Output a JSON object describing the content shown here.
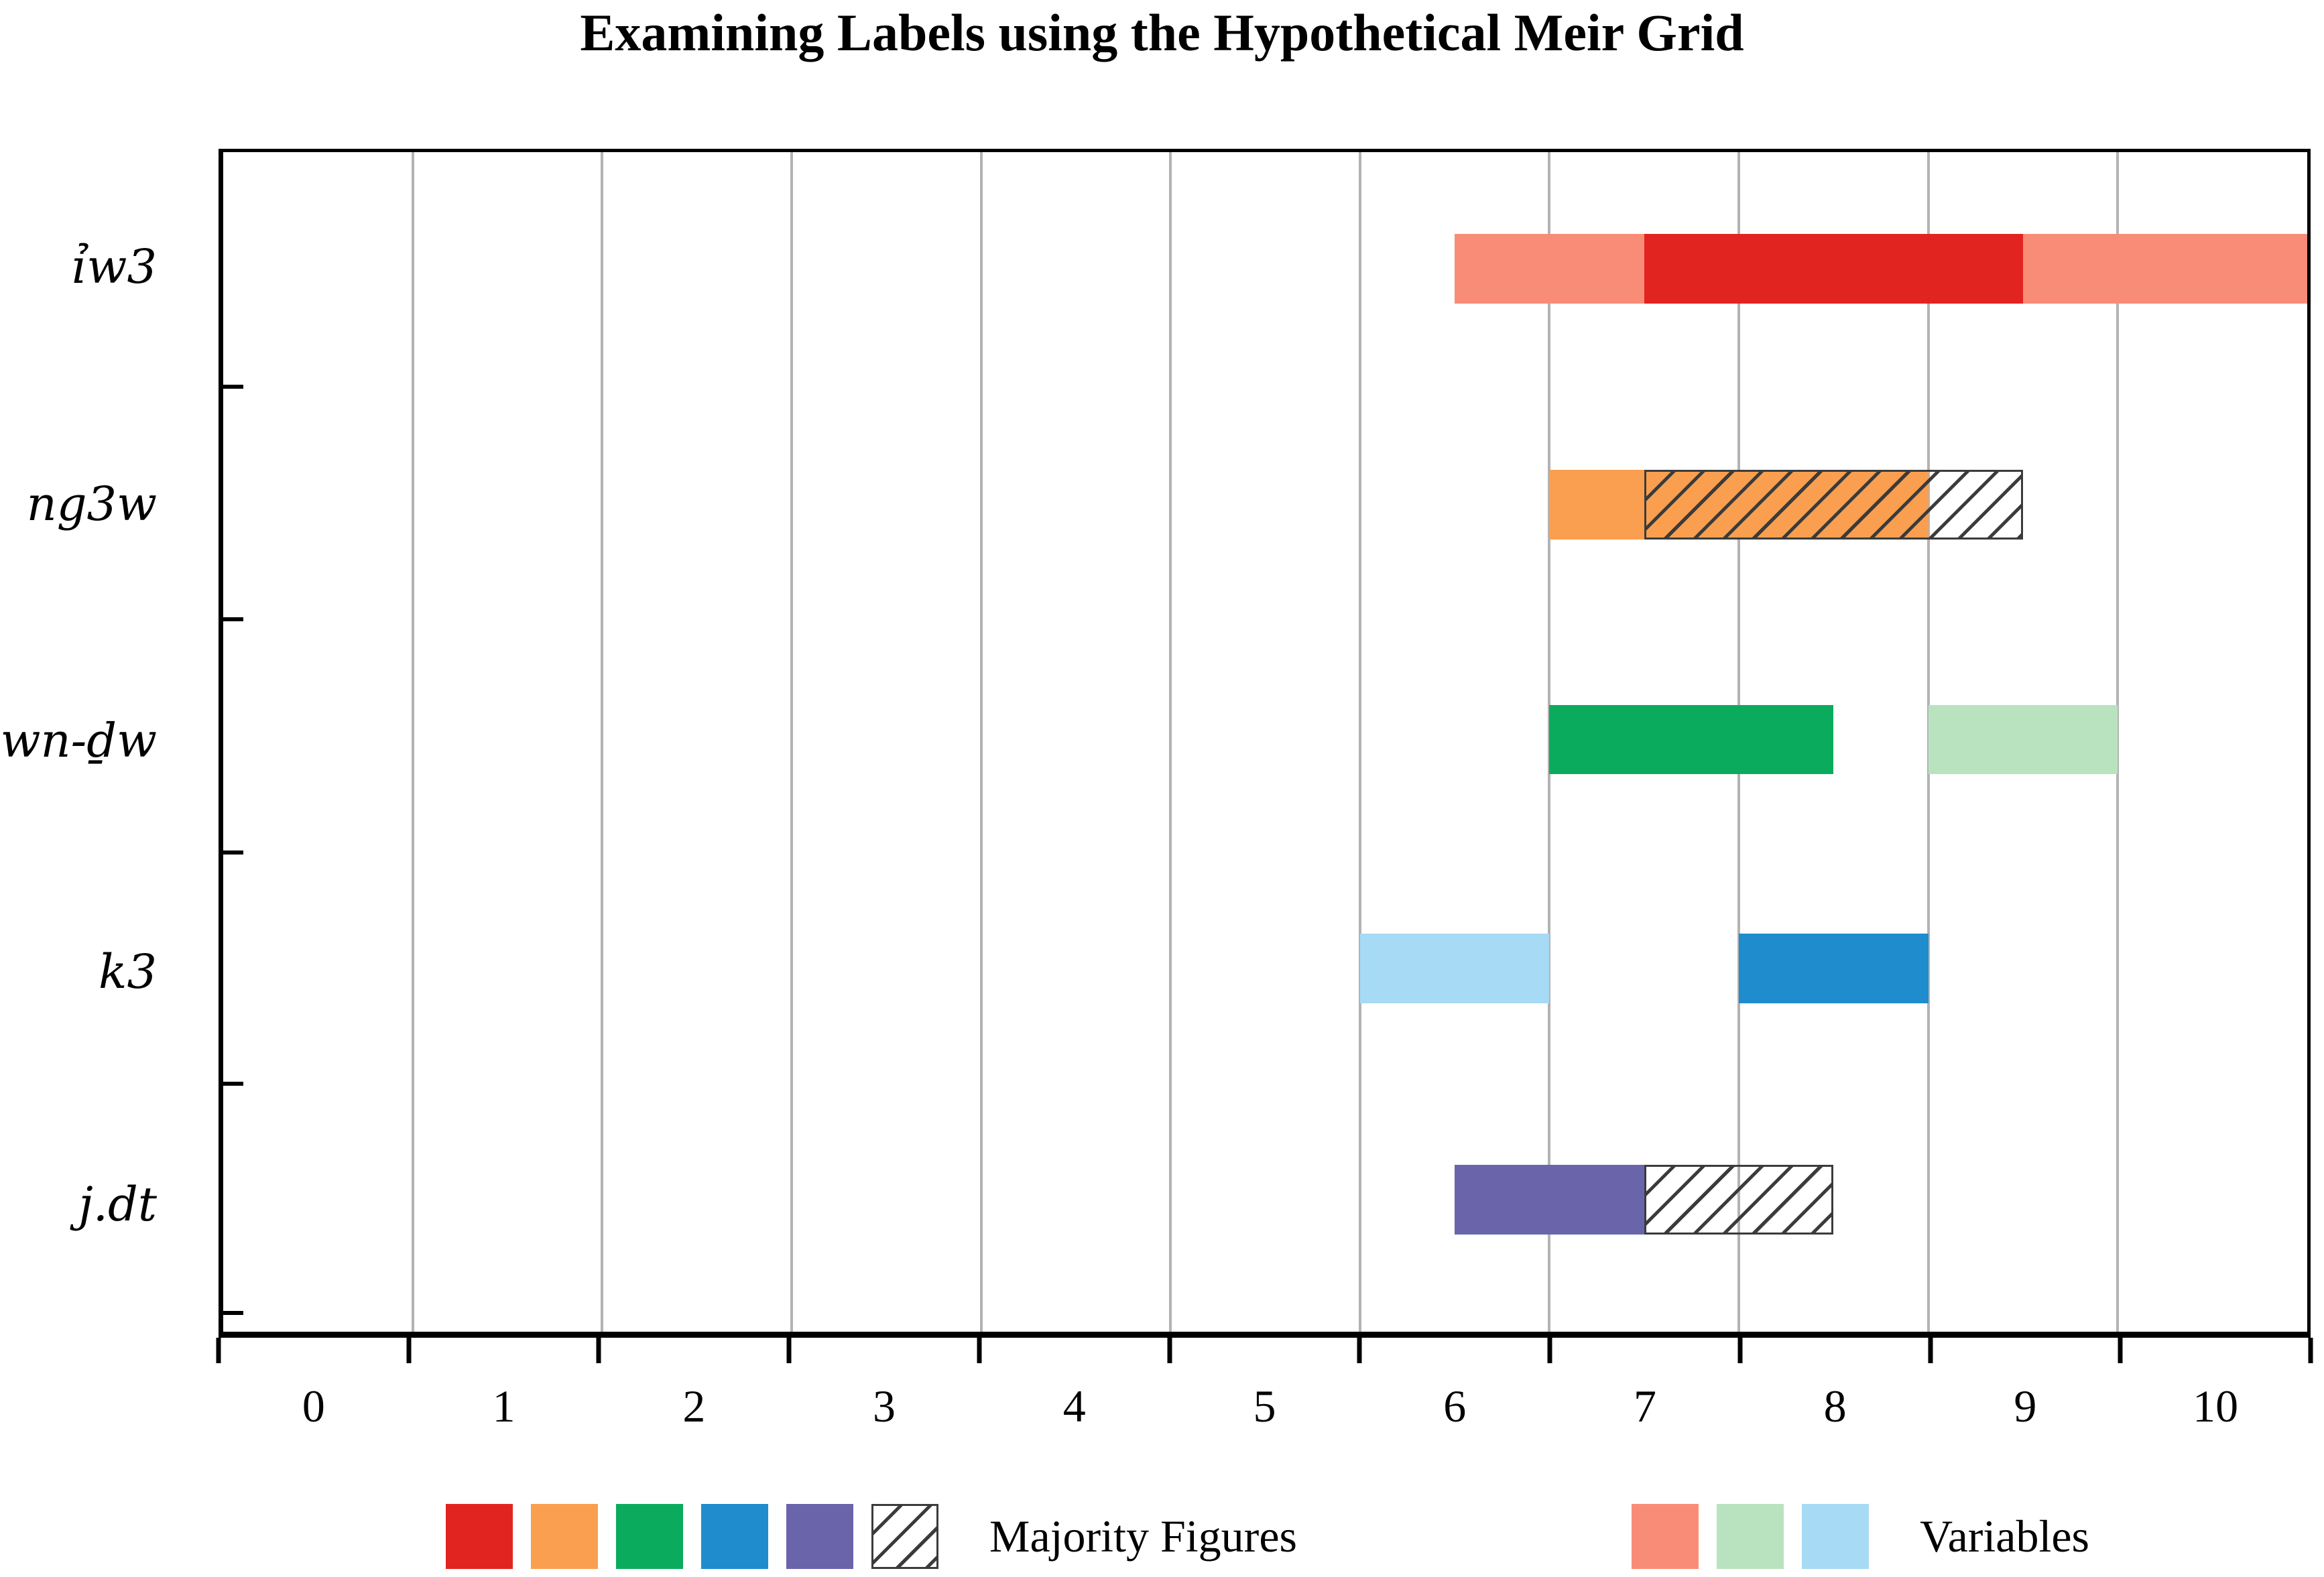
{
  "title": "Examining Labels using the Hypothetical Meir Grid",
  "chart_data": {
    "type": "bar",
    "orientation": "horizontal",
    "title": "Examining Labels using the Hypothetical Meir Grid",
    "x_axis": {
      "range": [
        -0.5,
        10.5
      ],
      "tick_label_values": [
        0,
        1,
        2,
        3,
        4,
        5,
        6,
        7,
        8,
        9,
        10
      ],
      "tick_labels": [
        "0",
        "1",
        "2",
        "3",
        "4",
        "5",
        "6",
        "7",
        "8",
        "9",
        "10"
      ],
      "axis_tick_marks_at": [
        -0.5,
        0.5,
        1.5,
        2.5,
        3.5,
        4.5,
        5.5,
        6.5,
        7.5,
        8.5,
        9.5,
        10.5
      ],
      "gridlines_at": [
        0.5,
        1.5,
        2.5,
        3.5,
        4.5,
        5.5,
        6.5,
        7.5,
        8.5,
        9.5
      ],
      "grid": true
    },
    "categories": [
      "ỉw3",
      "ng3w",
      "wn-ḏw",
      "k3",
      "j.dt"
    ],
    "rows": [
      {
        "label": "ỉw3",
        "segments": [
          {
            "style": "solid",
            "color_key": "salmon",
            "series": "Variables",
            "start": 6.0,
            "end": 10.5,
            "clipped_at_axis_end": true
          },
          {
            "style": "solid",
            "color_key": "red",
            "series": "Majority Figures",
            "start": 7.0,
            "end": 9.0
          }
        ]
      },
      {
        "label": "ng3w",
        "segments": [
          {
            "style": "solid",
            "color_key": "orange",
            "series": "Majority Figures",
            "start": 6.5,
            "end": 8.5
          },
          {
            "style": "hatched",
            "series": "Majority Figures",
            "start": 7.0,
            "end": 9.0
          }
        ]
      },
      {
        "label": "wn-ḏw",
        "segments": [
          {
            "style": "solid",
            "color_key": "green",
            "series": "Majority Figures",
            "start": 6.5,
            "end": 8.0
          },
          {
            "style": "solid",
            "color_key": "light_green",
            "series": "Variables",
            "start": 8.5,
            "end": 9.5
          }
        ]
      },
      {
        "label": "k3",
        "segments": [
          {
            "style": "solid",
            "color_key": "light_blue",
            "series": "Variables",
            "start": 5.5,
            "end": 6.5
          },
          {
            "style": "solid",
            "color_key": "blue",
            "series": "Majority Figures",
            "start": 7.5,
            "end": 8.5
          }
        ]
      },
      {
        "label": "j.dt",
        "segments": [
          {
            "style": "solid",
            "color_key": "purple",
            "series": "Majority Figures",
            "start": 6.0,
            "end": 7.0
          },
          {
            "style": "hatched",
            "series": "Majority Figures",
            "start": 7.0,
            "end": 8.0
          }
        ]
      }
    ],
    "legend": {
      "position": "bottom",
      "groups": [
        {
          "label": "Majority Figures",
          "swatches": [
            "red",
            "orange",
            "green",
            "blue",
            "purple",
            "hatch"
          ]
        },
        {
          "label": "Variables",
          "swatches": [
            "salmon",
            "light_green",
            "light_blue"
          ]
        }
      ]
    },
    "colors": {
      "red": "#e22420",
      "salmon": "#f98c77",
      "orange": "#fa9f4f",
      "green": "#0bab5e",
      "light_green": "#b9e3bf",
      "blue": "#1e8ccd",
      "light_blue": "#a7daf4",
      "purple": "#6a64ab",
      "gridline": "#b3b3b3",
      "hatch_line": "#3b3b3b",
      "axis": "#000000"
    }
  }
}
